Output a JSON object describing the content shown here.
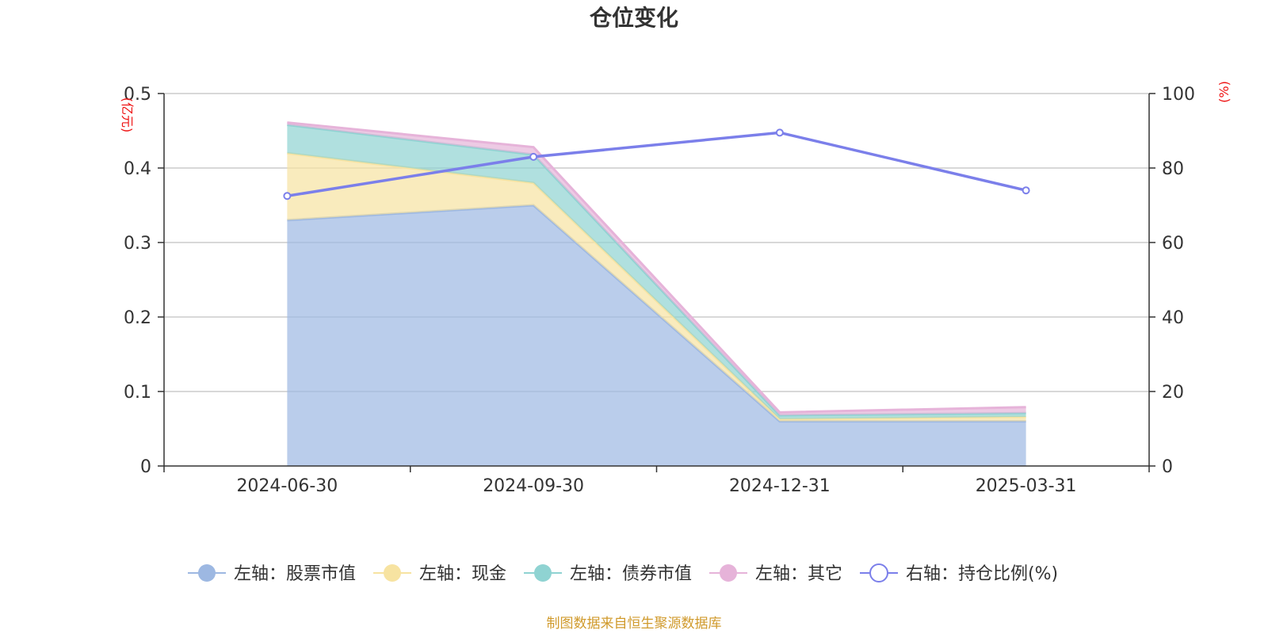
{
  "chart_data": {
    "type": "area",
    "title": "仓位变化",
    "categories": [
      "2024-06-30",
      "2024-09-30",
      "2024-12-31",
      "2025-03-31"
    ],
    "left_axis": {
      "unit": "(亿元)",
      "ylim": [
        0,
        0.5
      ],
      "ticks": [
        "0",
        "0.1",
        "0.2",
        "0.3",
        "0.4",
        "0.5"
      ]
    },
    "right_axis": {
      "unit": "(%)",
      "ylim": [
        0,
        100
      ],
      "ticks": [
        "0",
        "20",
        "40",
        "60",
        "80",
        "100"
      ]
    },
    "stacked_series": [
      {
        "name": "左轴：股票市值",
        "values": [
          0.33,
          0.35,
          0.06,
          0.06
        ],
        "color": "#9db8e2"
      },
      {
        "name": "左轴：现金",
        "values": [
          0.09,
          0.03,
          0.003,
          0.006
        ],
        "color": "#f7e3a1"
      },
      {
        "name": "左轴：债券市值",
        "values": [
          0.038,
          0.038,
          0.005,
          0.005
        ],
        "color": "#8fd3d2"
      },
      {
        "name": "左轴：其它",
        "values": [
          0.003,
          0.01,
          0.004,
          0.008
        ],
        "color": "#e6b3d9"
      }
    ],
    "line_series": [
      {
        "name": "右轴：持仓比例(%)",
        "values": [
          72.5,
          83,
          89.5,
          74
        ],
        "color": "#7b7fea"
      }
    ],
    "grid": true,
    "legend_position": "bottom"
  },
  "footer": {
    "source": "制图数据来自恒生聚源数据库"
  }
}
